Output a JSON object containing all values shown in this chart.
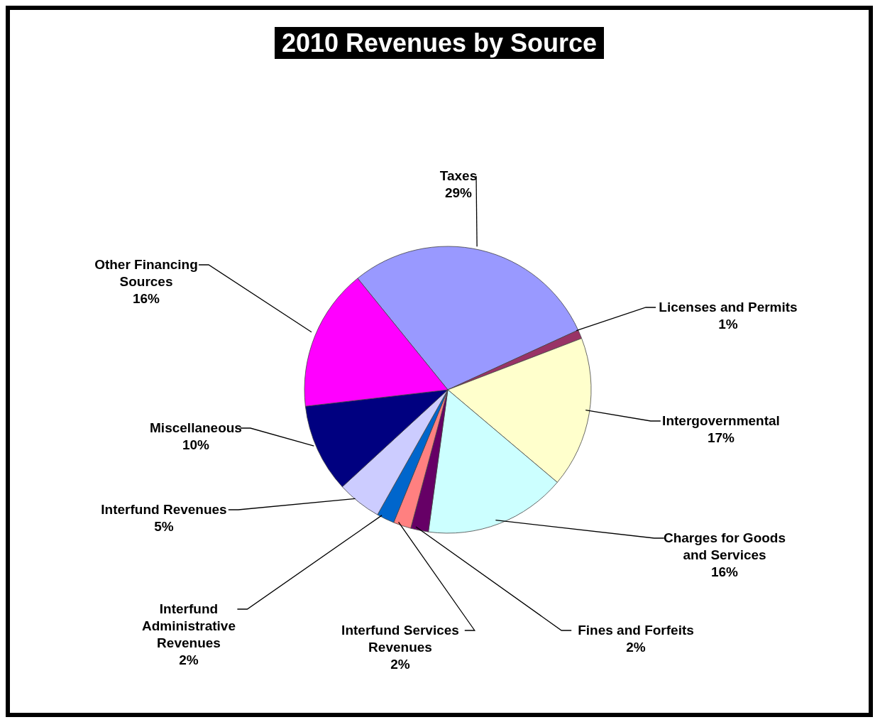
{
  "chart_data": {
    "type": "pie",
    "title": "2010 Revenues by Source",
    "categories": [
      "Taxes",
      "Licenses and Permits",
      "Intergovernmental",
      "Charges for Goods and Services",
      "Fines and Forfeits",
      "Interfund Services Revenues",
      "Interfund Administrative Revenues",
      "Interfund Revenues",
      "Miscellaneous",
      "Other Financing Sources"
    ],
    "values": [
      29,
      1,
      17,
      16,
      2,
      2,
      2,
      5,
      10,
      16
    ],
    "colors": [
      "#9999ff",
      "#993366",
      "#ffffcc",
      "#ccffff",
      "#660066",
      "#ff8080",
      "#0066cc",
      "#ccccff",
      "#000080",
      "#ff00ff"
    ],
    "value_labels": [
      "29%",
      "1%",
      "17%",
      "16%",
      "2%",
      "2%",
      "2%",
      "5%",
      "10%",
      "16%"
    ]
  }
}
